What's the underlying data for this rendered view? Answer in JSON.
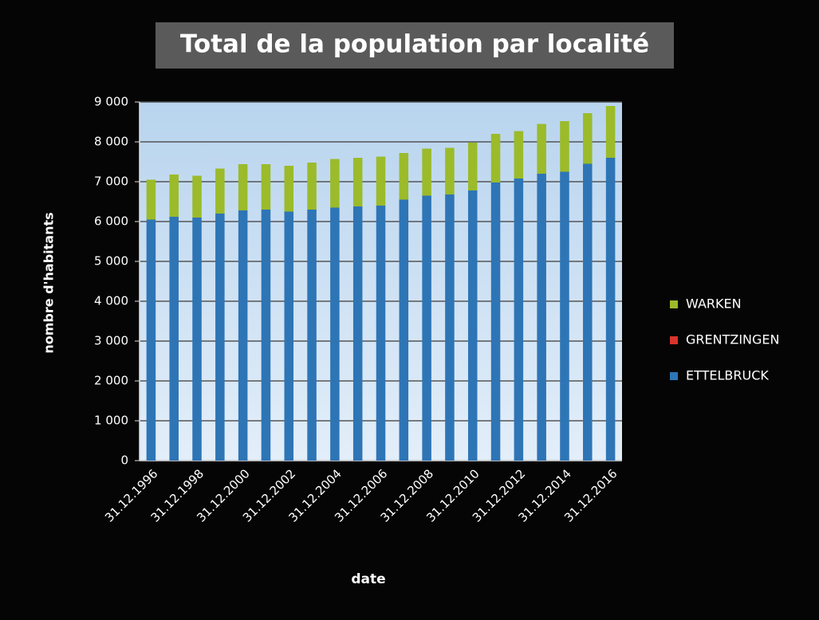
{
  "chart_data": {
    "type": "bar",
    "stacked": true,
    "title": "Total de la population par localité",
    "xlabel": "date",
    "ylabel": "nombre d'habitants",
    "categories": [
      "31.12.1996",
      null,
      "31.12.1998",
      null,
      "31.12.2000",
      null,
      "31.12.2002",
      null,
      "31.12.2004",
      null,
      "31.12.2006",
      null,
      "31.12.2008",
      null,
      "31.12.2010",
      null,
      "31.12.2012",
      null,
      "31.12.2014",
      null,
      "31.12.2016"
    ],
    "series": [
      {
        "name": "ETTELBRUCK",
        "color": "#2e75b6",
        "values": [
          6050,
          6120,
          6100,
          6200,
          6280,
          6300,
          6250,
          6300,
          6350,
          6380,
          6400,
          6550,
          6650,
          6680,
          6780,
          6980,
          7080,
          7200,
          7250,
          7450,
          7600
        ]
      },
      {
        "name": "GRENTZINGEN",
        "color": "#d9342b",
        "values": [
          0,
          0,
          0,
          0,
          0,
          0,
          0,
          0,
          0,
          0,
          0,
          0,
          0,
          0,
          0,
          0,
          0,
          0,
          0,
          0,
          0
        ]
      },
      {
        "name": "WARKEN",
        "color": "#9bbb2a",
        "values": [
          1000,
          1060,
          1050,
          1130,
          1160,
          1140,
          1150,
          1180,
          1220,
          1220,
          1230,
          1170,
          1180,
          1170,
          1200,
          1220,
          1190,
          1250,
          1270,
          1270,
          1300
        ]
      }
    ],
    "ylim": [
      0,
      9000
    ],
    "yticks": [
      0,
      {
        "value": 1000,
        "label": "1 000"
      },
      {
        "value": 2000,
        "label": "2 000"
      },
      {
        "value": 3000,
        "label": "3 000"
      },
      {
        "value": 4000,
        "label": "4 000"
      },
      {
        "value": 5000,
        "label": "5 000"
      },
      {
        "value": 6000,
        "label": "6 000"
      },
      {
        "value": 7000,
        "label": "7 000"
      },
      {
        "value": 8000,
        "label": "8 000"
      },
      {
        "value": 9000,
        "label": "9 000"
      }
    ],
    "grid": true,
    "legend": "right"
  }
}
